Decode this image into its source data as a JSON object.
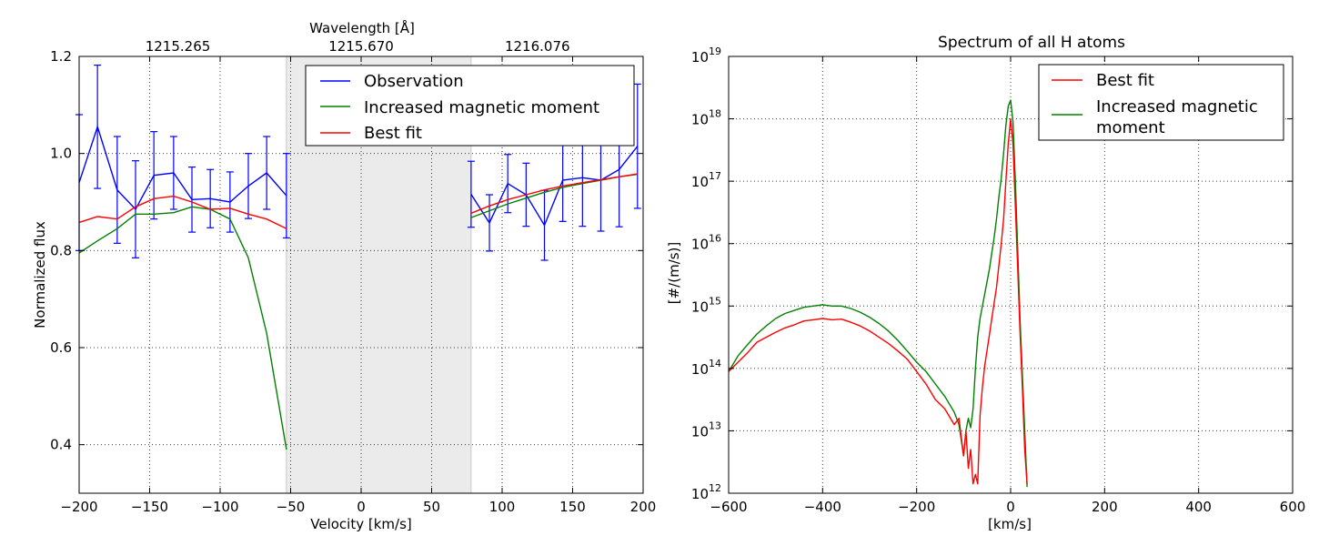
{
  "colors": {
    "observation": "#0000ff",
    "increased": "#008000",
    "bestfit": "#ff0000",
    "mask": "#ebebeb"
  },
  "chart_data": [
    {
      "type": "line",
      "title": "",
      "xlabel": "Velocity [km/s]",
      "ylabel": "Normalized flux",
      "top_axis_label": "Wavelength [Å]",
      "top_ticks": [
        {
          "v": -130,
          "label": "1215.265"
        },
        {
          "v": 0,
          "label": "1215.670"
        },
        {
          "v": 125,
          "label": "1216.076"
        }
      ],
      "xlim": [
        -200,
        200
      ],
      "ylim": [
        0.3,
        1.2
      ],
      "xticks": [
        -200,
        -150,
        -100,
        -50,
        0,
        50,
        100,
        150,
        200
      ],
      "xtick_labels": [
        "−200",
        "−150",
        "−100",
        "−50",
        "0",
        "50",
        "100",
        "150",
        "200"
      ],
      "yticks": [
        0.4,
        0.6,
        0.8,
        1.0,
        1.2
      ],
      "ytick_labels": [
        "0.4",
        "0.6",
        "0.8",
        "1.0",
        "1.2"
      ],
      "masked_region": [
        -53,
        78
      ],
      "grid": true,
      "legend_position": "top-right",
      "series": [
        {
          "name": "Observation",
          "color_key": "observation",
          "segments": [
            {
              "x": [
                -200,
                -187,
                -173,
                -160,
                -147,
                -133,
                -120,
                -107,
                -93,
                -80,
                -67,
                -53
              ],
              "y": [
                0.94,
                1.055,
                0.925,
                0.885,
                0.955,
                0.96,
                0.905,
                0.907,
                0.9,
                0.933,
                0.96,
                0.913
              ],
              "err": [
                0.14,
                0.127,
                0.11,
                0.1,
                0.09,
                0.075,
                0.067,
                0.06,
                0.062,
                0.067,
                0.075,
                0.087
              ]
            },
            {
              "x": [
                78,
                91,
                104,
                117,
                130,
                143,
                157,
                170,
                183,
                196
              ],
              "y": [
                0.916,
                0.857,
                0.938,
                0.915,
                0.852,
                0.945,
                0.95,
                0.945,
                0.967,
                1.015
              ],
              "err": [
                0.068,
                0.058,
                0.06,
                0.065,
                0.072,
                0.085,
                0.1,
                0.105,
                0.118,
                0.128
              ]
            }
          ]
        },
        {
          "name": "Increased magnetic moment",
          "color_key": "increased",
          "segments": [
            {
              "x": [
                -200,
                -187,
                -173,
                -160,
                -147,
                -133,
                -120,
                -107,
                -93,
                -80,
                -67,
                -53
              ],
              "y": [
                0.795,
                0.82,
                0.845,
                0.875,
                0.875,
                0.878,
                0.89,
                0.885,
                0.865,
                0.785,
                0.63,
                0.39
              ]
            },
            {
              "x": [
                78,
                91,
                104,
                117,
                130,
                143,
                157,
                170,
                183,
                196
              ],
              "y": [
                0.868,
                0.882,
                0.896,
                0.908,
                0.92,
                0.93,
                0.938,
                0.945,
                0.952,
                0.957
              ]
            }
          ]
        },
        {
          "name": "Best fit",
          "color_key": "bestfit",
          "segments": [
            {
              "x": [
                -200,
                -187,
                -173,
                -160,
                -147,
                -133,
                -120,
                -107,
                -93,
                -80,
                -67,
                -53
              ],
              "y": [
                0.858,
                0.87,
                0.865,
                0.89,
                0.907,
                0.912,
                0.9,
                0.885,
                0.887,
                0.875,
                0.865,
                0.845
              ]
            },
            {
              "x": [
                78,
                91,
                104,
                117,
                130,
                143,
                157,
                170,
                183,
                196
              ],
              "y": [
                0.877,
                0.892,
                0.905,
                0.915,
                0.925,
                0.933,
                0.94,
                0.946,
                0.952,
                0.958
              ]
            }
          ]
        }
      ]
    },
    {
      "type": "line",
      "title": "Spectrum of all H atoms",
      "xlabel": "[km/s]",
      "ylabel": "[#/(m/s)]",
      "xlim": [
        -600,
        600
      ],
      "ylim_log10": [
        12,
        19
      ],
      "xticks": [
        -600,
        -400,
        -200,
        0,
        200,
        400,
        600
      ],
      "xtick_labels": [
        "−600",
        "−400",
        "−200",
        "0",
        "200",
        "400",
        "600"
      ],
      "ytick_exponents": [
        12,
        13,
        14,
        15,
        16,
        17,
        18,
        19
      ],
      "ytick_base": "10",
      "grid": true,
      "legend_position": "top-right",
      "series": [
        {
          "name": "Best fit",
          "color_key": "bestfit",
          "x": [
            -600,
            -580,
            -560,
            -540,
            -520,
            -500,
            -480,
            -460,
            -440,
            -420,
            -400,
            -380,
            -360,
            -340,
            -320,
            -300,
            -280,
            -260,
            -240,
            -220,
            -200,
            -180,
            -160,
            -140,
            -120,
            -110,
            -100,
            -95,
            -90,
            -85,
            -80,
            -75,
            -70,
            -65,
            -60,
            -55,
            -50,
            -45,
            -40,
            -35,
            -30,
            -25,
            -20,
            -15,
            -10,
            -5,
            0,
            5,
            10,
            15,
            20,
            25,
            30,
            35
          ],
          "y_log10": [
            13.95,
            14.1,
            14.25,
            14.42,
            14.5,
            14.58,
            14.65,
            14.7,
            14.76,
            14.78,
            14.8,
            14.78,
            14.79,
            14.74,
            14.68,
            14.6,
            14.5,
            14.4,
            14.28,
            14.15,
            13.95,
            13.75,
            13.5,
            13.35,
            13.1,
            13.2,
            12.6,
            13.0,
            12.4,
            12.7,
            12.15,
            12.3,
            12.15,
            13.25,
            13.7,
            14.05,
            14.3,
            14.55,
            14.8,
            15.05,
            15.3,
            15.65,
            16.0,
            16.4,
            17.0,
            17.6,
            18.0,
            17.6,
            16.6,
            15.6,
            14.6,
            13.7,
            12.7,
            12.15
          ]
        },
        {
          "name": "Increased magnetic moment",
          "color_key": "increased",
          "x": [
            -600,
            -580,
            -560,
            -540,
            -520,
            -500,
            -480,
            -460,
            -440,
            -420,
            -400,
            -380,
            -360,
            -340,
            -320,
            -300,
            -280,
            -260,
            -240,
            -220,
            -200,
            -180,
            -160,
            -140,
            -120,
            -110,
            -100,
            -95,
            -90,
            -85,
            -80,
            -75,
            -70,
            -65,
            -60,
            -55,
            -50,
            -45,
            -40,
            -35,
            -30,
            -25,
            -20,
            -15,
            -10,
            -5,
            0,
            5,
            10,
            15,
            20,
            25,
            30,
            35
          ],
          "y_log10": [
            13.95,
            14.2,
            14.38,
            14.55,
            14.68,
            14.8,
            14.88,
            14.93,
            14.98,
            15.0,
            15.02,
            15.0,
            15.0,
            14.96,
            14.9,
            14.82,
            14.72,
            14.6,
            14.45,
            14.28,
            14.1,
            13.95,
            13.75,
            13.55,
            13.3,
            13.1,
            12.6,
            13.0,
            13.2,
            13.05,
            13.35,
            14.0,
            14.5,
            14.8,
            15.0,
            15.2,
            15.4,
            15.6,
            15.85,
            16.1,
            16.4,
            16.75,
            17.05,
            17.45,
            17.9,
            18.2,
            18.3,
            17.95,
            17.0,
            15.9,
            14.8,
            13.9,
            13.0,
            12.1
          ]
        }
      ]
    }
  ]
}
